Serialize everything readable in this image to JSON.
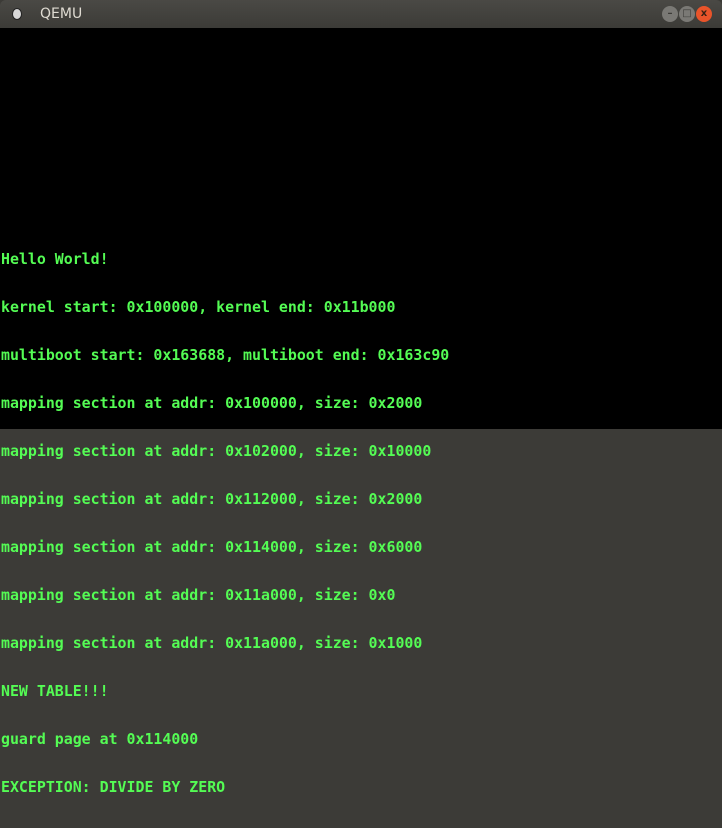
{
  "window": {
    "title": "QEMU",
    "icon": "qemu-app-icon",
    "buttons": {
      "minimize": "–",
      "maximize": "□",
      "close": "x"
    }
  },
  "console": {
    "text_color": "#54fc54",
    "background": "#000000",
    "lines": [
      "Hello World!",
      "kernel start: 0x100000, kernel end: 0x11b000",
      "multiboot start: 0x163688, multiboot end: 0x163c90",
      "mapping section at addr: 0x100000, size: 0x2000",
      "mapping section at addr: 0x102000, size: 0x10000",
      "mapping section at addr: 0x112000, size: 0x2000",
      "mapping section at addr: 0x114000, size: 0x6000",
      "mapping section at addr: 0x11a000, size: 0x0",
      "mapping section at addr: 0x11a000, size: 0x1000",
      "NEW TABLE!!!",
      "guard page at 0x114000",
      "EXCEPTION: DIVIDE BY ZERO"
    ]
  }
}
